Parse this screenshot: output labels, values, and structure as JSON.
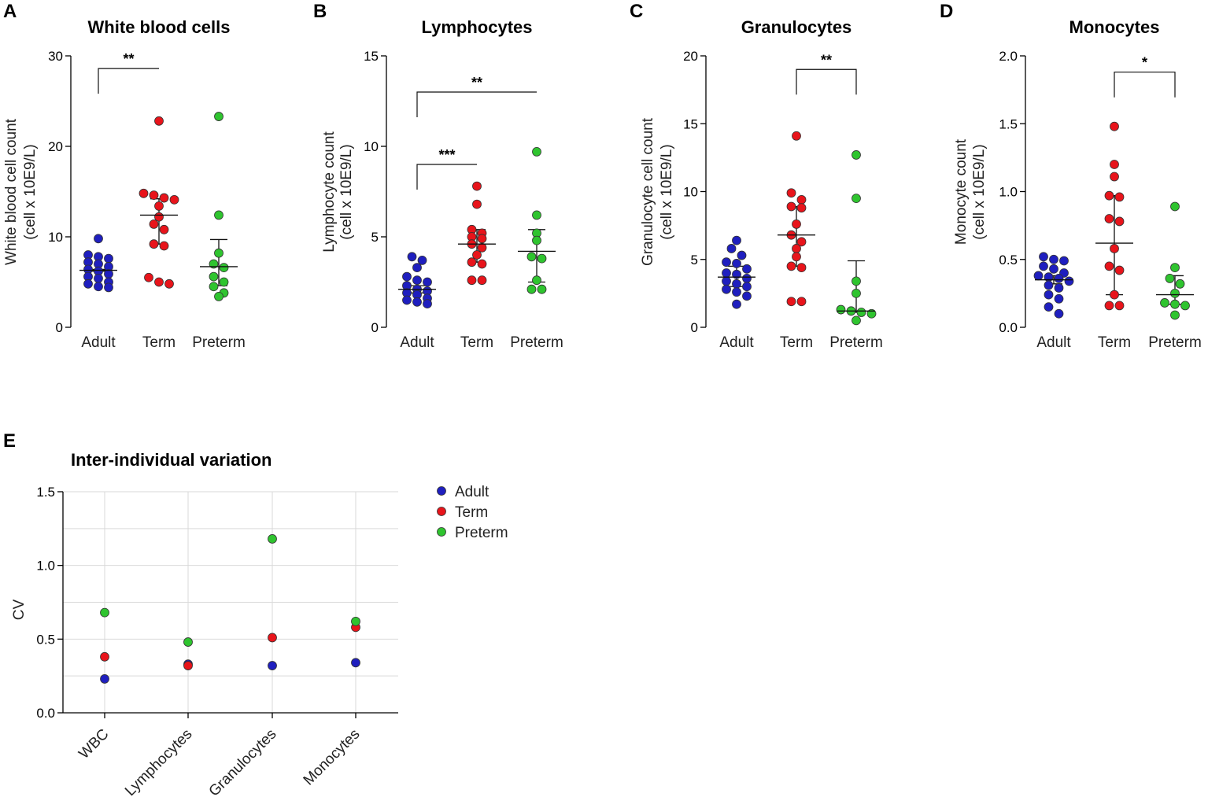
{
  "colors": {
    "Adult": "#1f1fbf",
    "Term": "#e8141b",
    "Preterm": "#2fc42f"
  },
  "chart_data": [
    {
      "id": "A",
      "panel_label": "A",
      "type": "scatter",
      "title": "White blood cells",
      "ylabel_line1": "White blood cell count",
      "ylabel_line2": "(cell x 10E9/L)",
      "ylim": [
        0,
        30
      ],
      "yticks": [
        "0",
        "10",
        "20",
        "30"
      ],
      "categories": [
        "Adult",
        "Term",
        "Preterm"
      ],
      "groups": [
        {
          "name": "Adult",
          "median": 6.3,
          "q1": 6.2,
          "q3": 6.4,
          "values": [
            9.8,
            8.0,
            7.8,
            7.6,
            7.2,
            7.0,
            6.7,
            6.4,
            6.2,
            5.9,
            5.6,
            5.4,
            5.0,
            4.8,
            4.5,
            4.4
          ]
        },
        {
          "name": "Term",
          "median": 12.4,
          "q1": 9.2,
          "q3": 14.2,
          "values": [
            22.8,
            14.8,
            14.6,
            14.3,
            14.1,
            13.4,
            12.2,
            11.4,
            10.8,
            9.2,
            9.0,
            5.5,
            5.0,
            4.8
          ]
        },
        {
          "name": "Preterm",
          "median": 6.7,
          "q1": 4.6,
          "q3": 9.7,
          "values": [
            23.3,
            12.4,
            8.2,
            7.0,
            6.6,
            5.6,
            5.0,
            4.5,
            3.8,
            3.4
          ]
        }
      ],
      "brackets": [
        {
          "from": 0,
          "to": 1,
          "y": 28.6,
          "label": "**"
        }
      ]
    },
    {
      "id": "B",
      "panel_label": "B",
      "type": "scatter",
      "title": "Lymphocytes",
      "ylabel_line1": "Lymphocyte count",
      "ylabel_line2": "(cell x 10E9/L)",
      "ylim": [
        0,
        15
      ],
      "yticks": [
        "0",
        "5",
        "10",
        "15"
      ],
      "categories": [
        "Adult",
        "Term",
        "Preterm"
      ],
      "groups": [
        {
          "name": "Adult",
          "median": 2.1,
          "q1": 1.9,
          "q3": 2.3,
          "values": [
            3.9,
            3.7,
            3.3,
            2.8,
            2.6,
            2.5,
            2.3,
            2.1,
            2.0,
            1.9,
            1.8,
            1.6,
            1.5,
            1.4,
            1.3
          ]
        },
        {
          "name": "Term",
          "median": 4.6,
          "q1": 3.6,
          "q3": 5.4,
          "values": [
            7.8,
            6.8,
            5.4,
            5.2,
            5.0,
            4.9,
            4.6,
            4.4,
            4.0,
            3.6,
            3.5,
            2.6,
            2.6
          ]
        },
        {
          "name": "Preterm",
          "median": 4.2,
          "q1": 2.5,
          "q3": 5.4,
          "values": [
            9.7,
            6.2,
            5.2,
            4.8,
            3.9,
            3.8,
            2.6,
            2.1,
            2.1
          ]
        }
      ],
      "brackets": [
        {
          "from": 0,
          "to": 2,
          "y": 13.0,
          "label": "**"
        },
        {
          "from": 0,
          "to": 1,
          "y": 9.0,
          "label": "***"
        }
      ]
    },
    {
      "id": "C",
      "panel_label": "C",
      "type": "scatter",
      "title": "Granulocytes",
      "ylabel_line1": "Granulocyte cell count",
      "ylabel_line2": "(cell x 10E9/L)",
      "ylim": [
        0,
        20
      ],
      "yticks": [
        "0",
        "5",
        "10",
        "15",
        "20"
      ],
      "categories": [
        "Adult",
        "Term",
        "Preterm"
      ],
      "groups": [
        {
          "name": "Adult",
          "median": 3.7,
          "q1": 3.0,
          "q3": 4.5,
          "values": [
            6.4,
            5.8,
            5.3,
            4.8,
            4.7,
            4.3,
            4.0,
            3.9,
            3.6,
            3.4,
            3.2,
            3.0,
            2.8,
            2.6,
            2.3,
            1.7
          ]
        },
        {
          "name": "Term",
          "median": 6.8,
          "q1": 4.5,
          "q3": 8.9,
          "values": [
            14.1,
            9.9,
            9.4,
            8.9,
            8.8,
            7.6,
            6.8,
            6.3,
            5.8,
            5.2,
            4.5,
            4.4,
            1.9,
            1.9
          ]
        },
        {
          "name": "Preterm",
          "median": 1.2,
          "q1": 1.1,
          "q3": 4.9,
          "values": [
            12.7,
            9.5,
            3.4,
            2.5,
            1.3,
            1.2,
            1.1,
            1.0,
            0.5
          ]
        }
      ],
      "brackets": [
        {
          "from": 1,
          "to": 2,
          "y": 19.0,
          "label": "**"
        }
      ]
    },
    {
      "id": "D",
      "panel_label": "D",
      "type": "scatter",
      "title": "Monocytes",
      "ylabel_line1": "Monocyte count",
      "ylabel_line2": "(cell x 10E9/L)",
      "ylim": [
        0,
        2.0
      ],
      "yticks": [
        "0.0",
        "0.5",
        "1.0",
        "1.5",
        "2.0"
      ],
      "categories": [
        "Adult",
        "Term",
        "Preterm"
      ],
      "groups": [
        {
          "name": "Adult",
          "median": 0.35,
          "q1": 0.32,
          "q3": 0.38,
          "values": [
            0.52,
            0.5,
            0.49,
            0.45,
            0.43,
            0.4,
            0.38,
            0.37,
            0.36,
            0.34,
            0.31,
            0.29,
            0.24,
            0.21,
            0.15,
            0.1
          ]
        },
        {
          "name": "Term",
          "median": 0.62,
          "q1": 0.24,
          "q3": 0.97,
          "values": [
            1.48,
            1.2,
            1.11,
            0.97,
            0.96,
            0.8,
            0.78,
            0.58,
            0.45,
            0.42,
            0.24,
            0.16,
            0.16
          ]
        },
        {
          "name": "Preterm",
          "median": 0.24,
          "q1": 0.17,
          "q3": 0.38,
          "values": [
            0.89,
            0.44,
            0.36,
            0.32,
            0.25,
            0.18,
            0.17,
            0.16,
            0.09
          ]
        }
      ],
      "brackets": [
        {
          "from": 1,
          "to": 2,
          "y": 1.88,
          "label": "*"
        }
      ]
    },
    {
      "id": "E",
      "panel_label": "E",
      "type": "scatter",
      "title": "Inter-individual variation",
      "ylabel": "CV",
      "ylim": [
        0,
        1.5
      ],
      "yticks": [
        "0.0",
        "0.5",
        "1.0",
        "1.5"
      ],
      "categories": [
        "WBC",
        "Lymphocytes",
        "Granulocytes",
        "Monocytes"
      ],
      "grid": true,
      "series": [
        {
          "name": "Adult",
          "values": [
            0.23,
            0.33,
            0.32,
            0.34
          ]
        },
        {
          "name": "Term",
          "values": [
            0.38,
            0.32,
            0.51,
            0.58
          ]
        },
        {
          "name": "Preterm",
          "values": [
            0.68,
            0.48,
            1.18,
            0.62
          ]
        }
      ],
      "legend": [
        "Adult",
        "Term",
        "Preterm"
      ],
      "legend_position": "right"
    }
  ]
}
